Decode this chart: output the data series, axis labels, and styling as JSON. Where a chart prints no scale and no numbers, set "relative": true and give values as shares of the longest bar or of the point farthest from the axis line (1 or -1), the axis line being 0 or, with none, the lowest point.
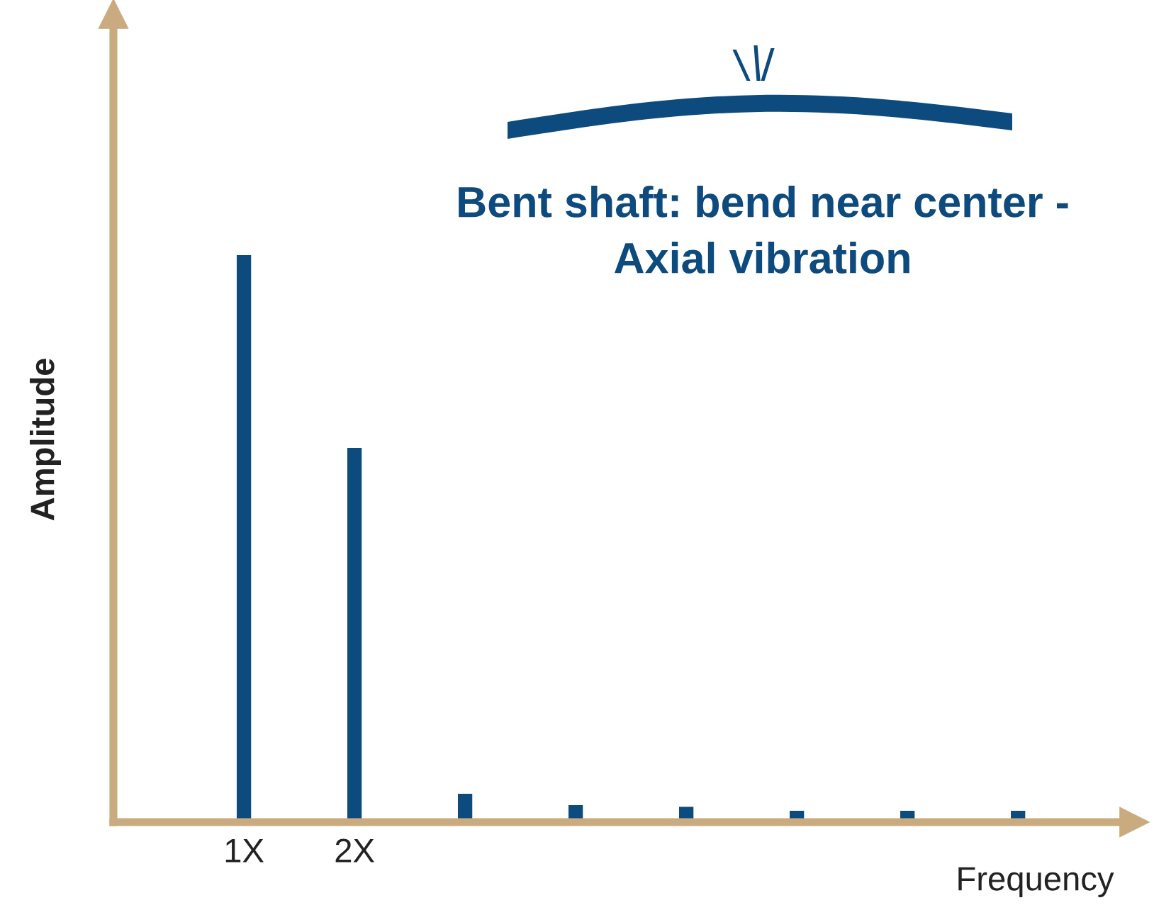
{
  "chart_data": {
    "type": "bar",
    "relative": true,
    "categories": [
      "1X",
      "2X",
      null,
      null,
      null,
      null,
      null,
      null
    ],
    "values": [
      1.0,
      0.66,
      0.05,
      0.03,
      0.027,
      0.02,
      0.02,
      0.02
    ],
    "color": "#0d4a7e",
    "xlabel": "Frequency",
    "ylabel": "Amplitude",
    "annotations": [
      "Bent shaft: bend near center -\nAxial vibration"
    ],
    "grid": false
  }
}
